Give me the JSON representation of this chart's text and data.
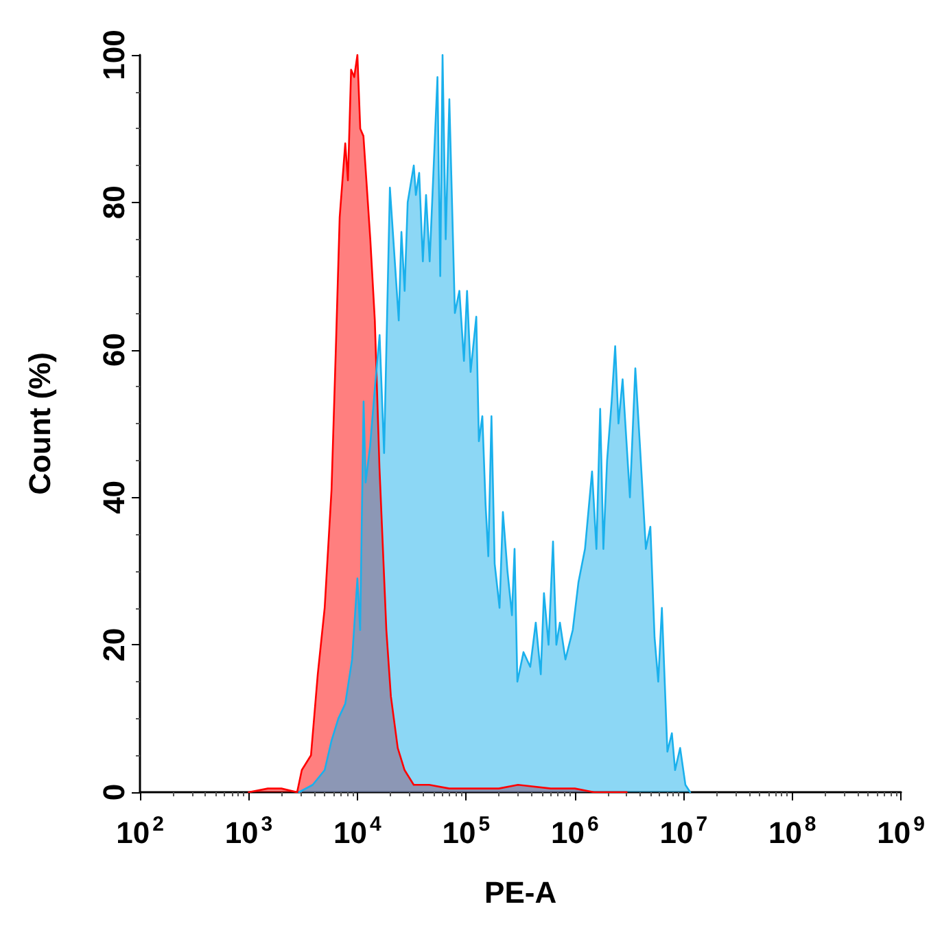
{
  "chart_data": {
    "type": "area",
    "xlabel": "PE-A",
    "ylabel": "Count (%)",
    "log": "x",
    "xlim": [
      100,
      1000000000
    ],
    "ylim": [
      0,
      100
    ],
    "xticks": [
      {
        "value": 100,
        "label": "10$^{2}$"
      },
      {
        "value": 1000,
        "label": "10$^{3}$"
      },
      {
        "value": 10000,
        "label": "10$^{4}$"
      },
      {
        "value": 100000,
        "label": "10$^{5}$"
      },
      {
        "value": 1000000,
        "label": "10$^{6}$"
      },
      {
        "value": 10000000,
        "label": "10$^{7}$"
      },
      {
        "value": 100000000,
        "label": "10$^{8}$"
      },
      {
        "value": 1000000000,
        "label": "10$^{9}$"
      }
    ],
    "yticks": [
      0,
      20,
      40,
      60,
      80,
      100
    ],
    "grid": false,
    "marker": "none",
    "line_style": "solid",
    "series": [
      {
        "color": "#ff0000",
        "x": [
          1000,
          1500,
          2000,
          2790,
          3080,
          3740,
          4320,
          5000,
          5780,
          6360,
          6870,
          7730,
          8180,
          8750,
          9350,
          10000,
          10620,
          11360,
          13140,
          14460,
          15960,
          18460,
          20320,
          23500,
          27160,
          32970,
          45800,
          70000,
          100000,
          200000,
          300000,
          600000,
          1000000,
          1500000,
          3000000
        ],
        "values": [
          0,
          0.5,
          0.5,
          0,
          3,
          5,
          16,
          25,
          41,
          61,
          78,
          88,
          83,
          98,
          97,
          100,
          90,
          89,
          75,
          64,
          44,
          22,
          13,
          6,
          3,
          1,
          1,
          0.5,
          0.5,
          0.5,
          1,
          0.5,
          0.5,
          0,
          0
        ]
      },
      {
        "color": "#1ab0ec",
        "x": [
          2900,
          3880,
          5000,
          5780,
          6680,
          7730,
          8930,
          10000,
          10600,
          11400,
          11900,
          13100,
          14500,
          16000,
          17600,
          19900,
          24000,
          25400,
          27200,
          29000,
          33000,
          34500,
          37000,
          40000,
          42800,
          46200,
          54500,
          57800,
          60700,
          64900,
          70100,
          78800,
          86700,
          95500,
          102000,
          110000,
          124000,
          131000,
          141000,
          151000,
          160000,
          171000,
          183000,
          203000,
          218000,
          240000,
          264000,
          279000,
          296000,
          337000,
          389000,
          437000,
          486000,
          520000,
          573000,
          630000,
          676000,
          729000,
          819000,
          957000,
          1080000,
          1240000,
          1440000,
          1580000,
          1710000,
          1830000,
          1980000,
          2180000,
          2350000,
          2520000,
          2750000,
          3210000,
          3600000,
          3970000,
          4500000,
          4950000,
          5410000,
          5850000,
          6320000,
          7100000,
          7810000,
          8360000,
          9300000,
          10400000,
          11500000
        ],
        "values": [
          0,
          1,
          3,
          7,
          10,
          12,
          18,
          29,
          22,
          53,
          42,
          47,
          55,
          62,
          46,
          82,
          64,
          76,
          68,
          80,
          85,
          81,
          84,
          72,
          81,
          72,
          97,
          70,
          100,
          75,
          94,
          65,
          68,
          58.5,
          68,
          57,
          64.5,
          47.6,
          51,
          39,
          32,
          51,
          31,
          25,
          38,
          30,
          24,
          33,
          15,
          19,
          17,
          23,
          16,
          27,
          20,
          34,
          20,
          23,
          18,
          22,
          28.5,
          33,
          43.5,
          33,
          52,
          33,
          45,
          53,
          60.5,
          50,
          56,
          40,
          57.5,
          47,
          33,
          36,
          21,
          15,
          25,
          5.5,
          8,
          3,
          6,
          1,
          0
        ]
      }
    ]
  }
}
